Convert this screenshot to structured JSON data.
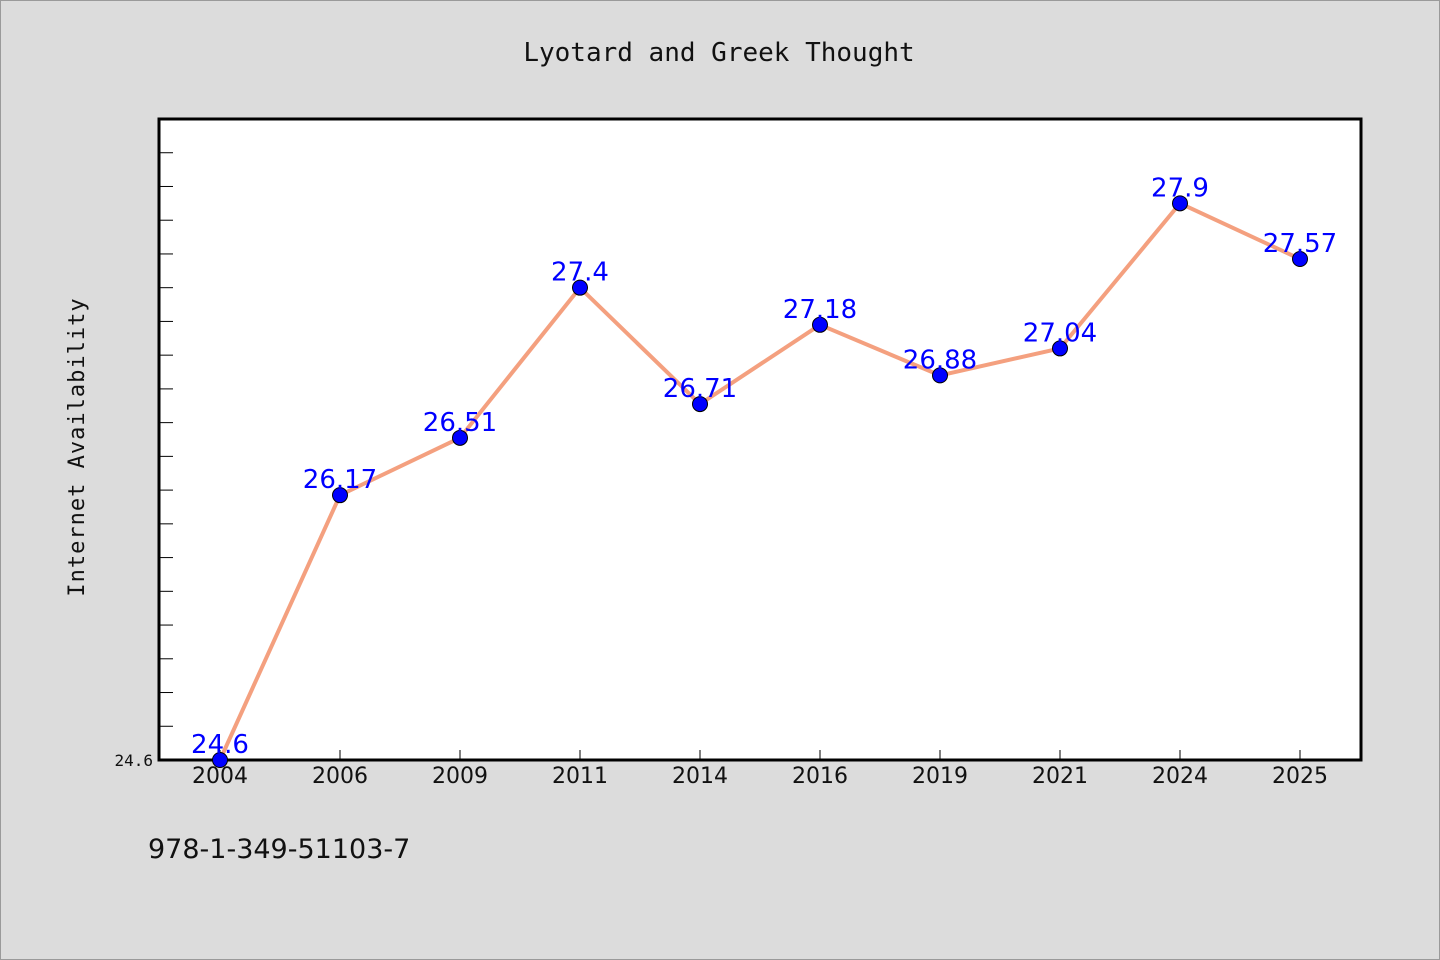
{
  "chart_data": {
    "type": "line",
    "title": "Lyotard and Greek Thought",
    "xlabel": "",
    "ylabel": "Internet Availability",
    "categories": [
      "2004",
      "2006",
      "2009",
      "2011",
      "2014",
      "2016",
      "2019",
      "2021",
      "2024",
      "2025"
    ],
    "values": [
      24.6,
      26.17,
      26.51,
      27.4,
      26.71,
      27.18,
      26.88,
      27.04,
      27.9,
      27.57
    ],
    "data_labels": [
      "24.6",
      "26.17",
      "26.51",
      "27.4",
      "26.71",
      "27.18",
      "26.88",
      "27.04",
      "27.9",
      "27.57"
    ],
    "ytick_labels": [
      "24.6"
    ],
    "ylim": [
      24.6,
      28.4
    ],
    "grid": false,
    "line_color": "#f4a07f",
    "marker_color": "#0000ff",
    "label_color": "#0000ff"
  },
  "footer": {
    "isbn": "978-1-349-51103-7"
  }
}
